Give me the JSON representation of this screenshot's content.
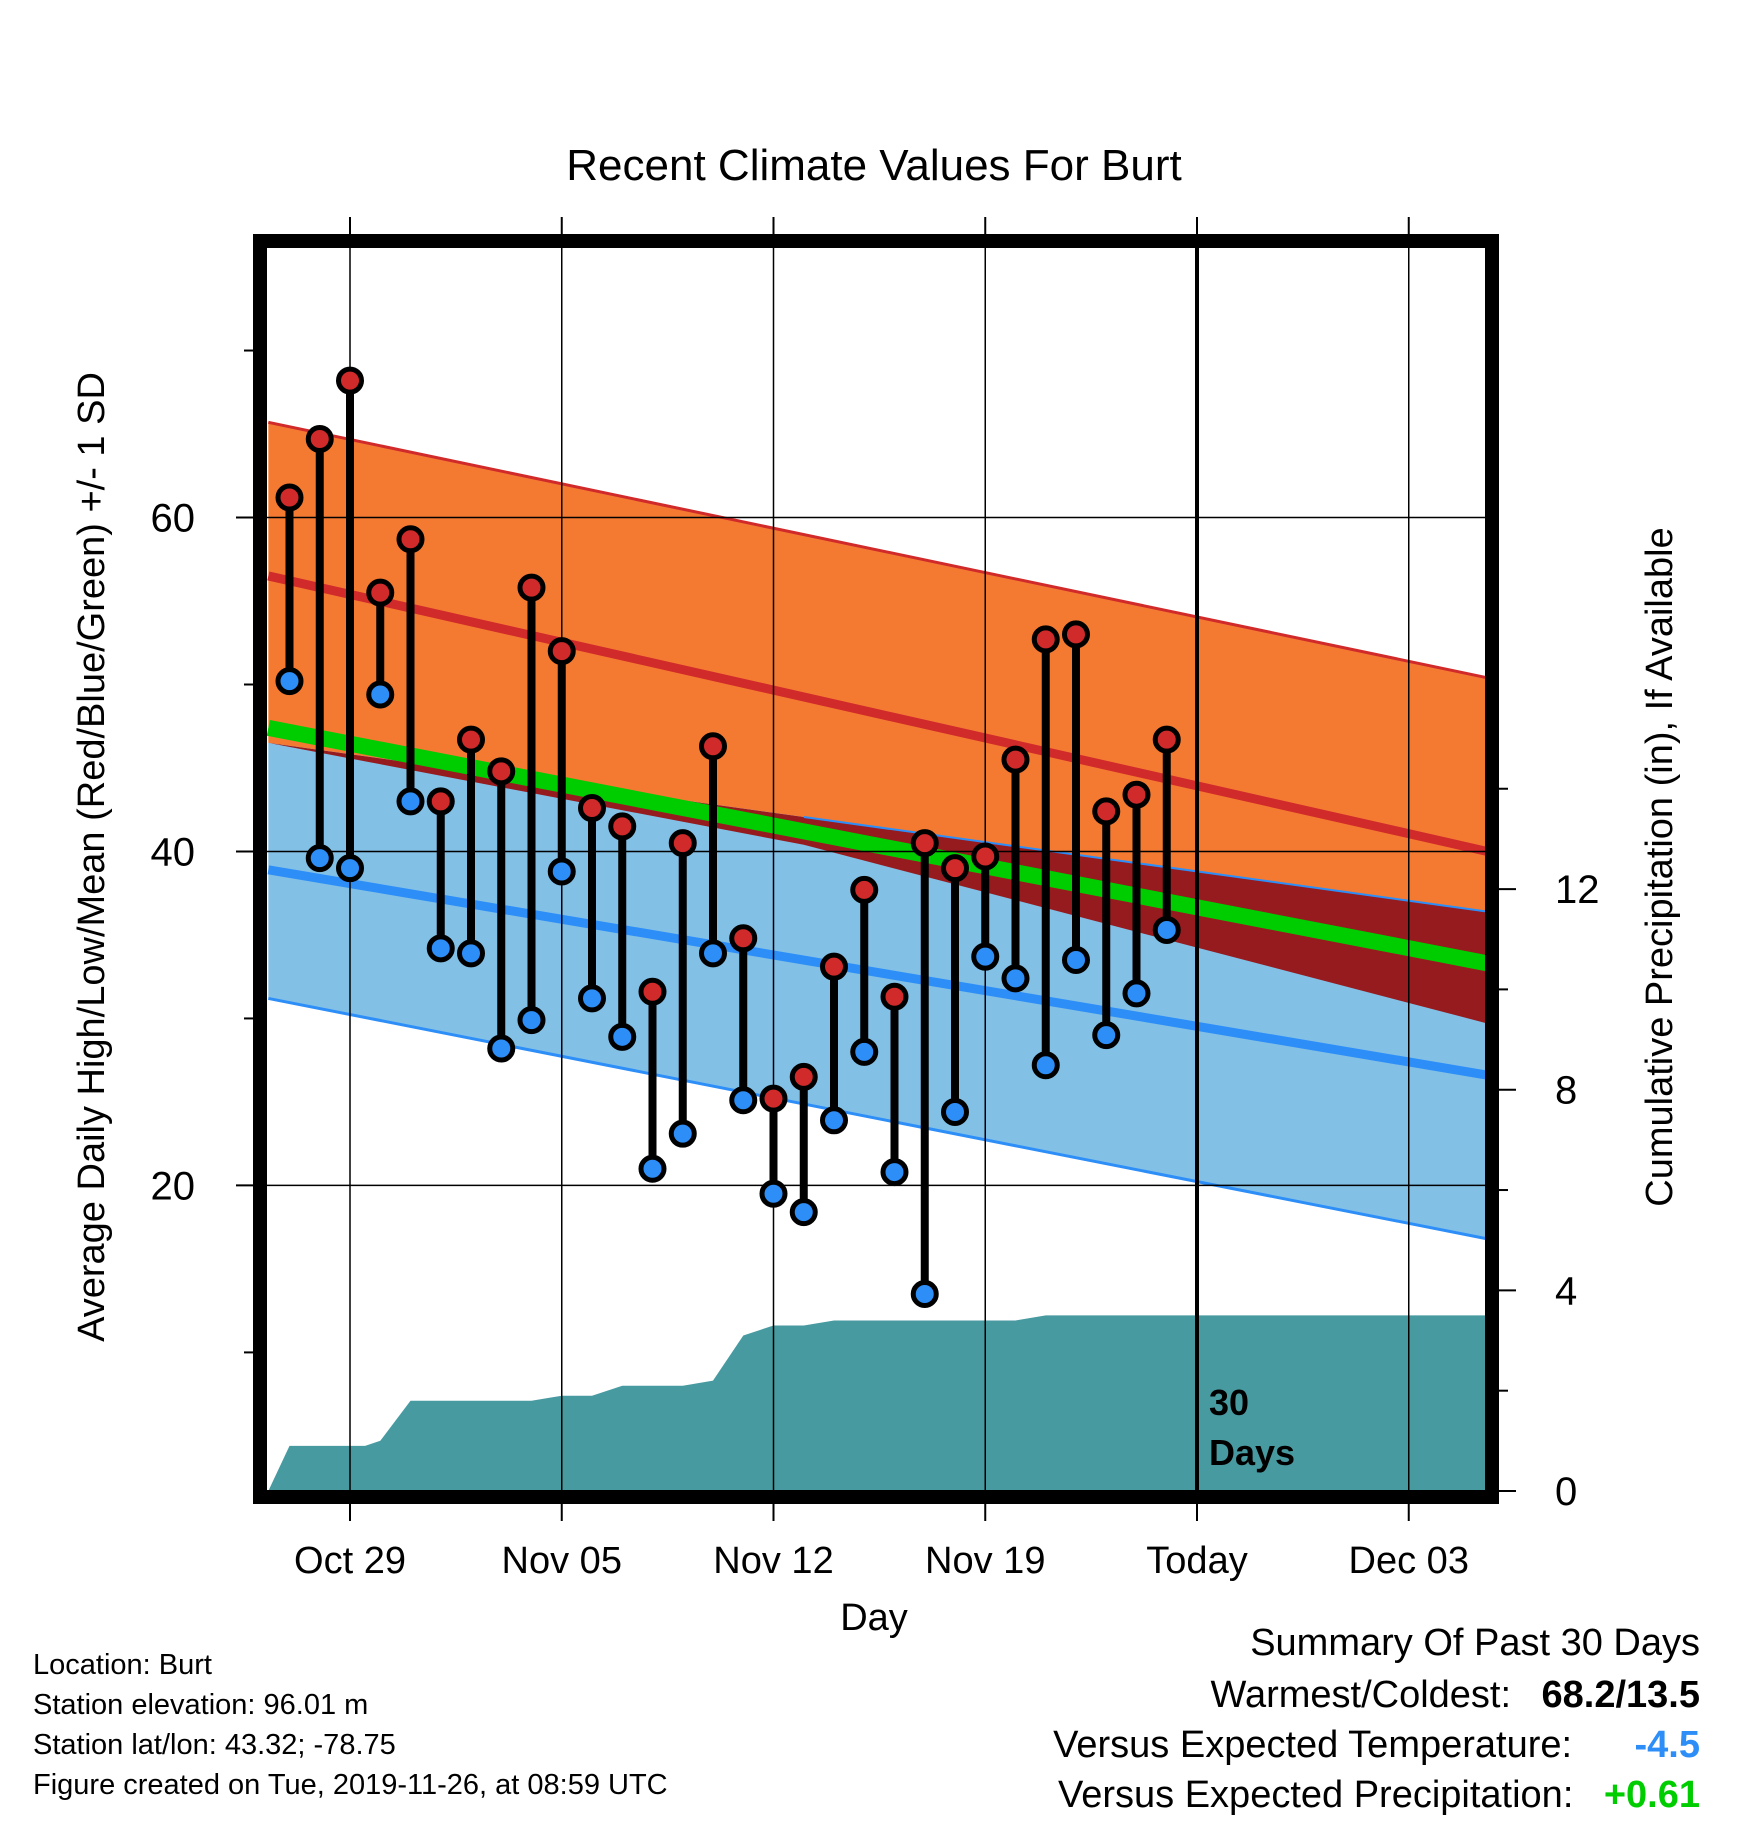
{
  "chart_data": {
    "type": "line",
    "title": "Recent Climate Values For Burt",
    "xlabel": "Day",
    "ylabel": "Average Daily High/Low/Mean (Red/Blue/Green) +/- 1 SD",
    "y2label": "Cumulative Precipitation (in), If Available",
    "x_ticks": [
      "Oct 29",
      "Nov 05",
      "Nov 12",
      "Nov 19",
      "Today",
      "Dec 03"
    ],
    "y_ticks": [
      20,
      40,
      60
    ],
    "y2_ticks": [
      0,
      4,
      8,
      12
    ],
    "ylim": [
      1.7,
      76.2
    ],
    "y2lim": [
      0,
      24.8
    ],
    "xlim_days": [
      -30.7,
      9.6
    ],
    "today_label": [
      "30",
      "Days"
    ],
    "grid": true,
    "colors": {
      "high_band": "#f47a32",
      "high_line": "#d12a2a",
      "low_band": "#82c0e6",
      "low_line": "#2d8ef8",
      "mean_line": "#00cd00",
      "warm_anomaly": "#951b1e",
      "precip": "#489aa1",
      "high_marker": "#d12a2a",
      "low_marker": "#2d8ef8"
    },
    "normals": {
      "high_mean": {
        "x": [
          -30.7,
          9.6
        ],
        "y": [
          56.5,
          40.0
        ]
      },
      "high_plus_sd": {
        "x": [
          -30.7,
          9.6
        ],
        "y": [
          65.7,
          50.4
        ]
      },
      "low_mean": {
        "x": [
          -30.7,
          9.6
        ],
        "y": [
          38.9,
          26.6
        ]
      },
      "low_minus_sd": {
        "x": [
          -30.7,
          9.6
        ],
        "y": [
          31.2,
          16.8
        ]
      },
      "mean": {
        "x": [
          -30.7,
          9.6
        ],
        "y": [
          47.4,
          33.3
        ]
      },
      "mean_lower_band_edge": {
        "x": [
          -30.7,
          -13.0,
          9.6
        ],
        "y": [
          46.5,
          40.4,
          29.7
        ]
      },
      "low_plus_sd": {
        "x": [
          -30.7,
          9.6
        ],
        "y": [
          46.5,
          36.4
        ]
      }
    },
    "daily": {
      "day_offset": [
        -30,
        -29,
        -28,
        -27,
        -26,
        -25,
        -24,
        -23,
        -22,
        -21,
        -20,
        -19,
        -18,
        -17,
        -16,
        -15,
        -14,
        -13,
        -12,
        -11,
        -10,
        -9,
        -8,
        -7,
        -6,
        -5,
        -4,
        -3,
        -2,
        -1
      ],
      "high": [
        61.2,
        64.7,
        68.2,
        55.5,
        58.7,
        43.0,
        46.7,
        44.8,
        55.8,
        52.0,
        42.6,
        41.5,
        31.6,
        40.5,
        46.3,
        34.8,
        25.2,
        26.5,
        33.1,
        37.7,
        31.3,
        40.5,
        39.0,
        39.7,
        45.5,
        52.7,
        53.0,
        42.4,
        43.4,
        46.7
      ],
      "low": [
        50.2,
        39.6,
        39.0,
        49.4,
        43.0,
        34.2,
        33.9,
        28.2,
        29.9,
        38.8,
        31.2,
        28.9,
        21.0,
        23.1,
        33.9,
        25.1,
        19.5,
        18.4,
        23.9,
        28.0,
        20.8,
        13.5,
        24.4,
        33.7,
        32.4,
        27.2,
        33.5,
        29.0,
        31.5,
        35.3
      ]
    },
    "precip_cumulative": {
      "day_offset": [
        -30.7,
        -30,
        -29,
        -28,
        -27.5,
        -27,
        -26,
        -25,
        -24,
        -23,
        -22,
        -21,
        -20,
        -19,
        -18,
        -17,
        -16,
        -15,
        -14,
        -13,
        -12,
        -11,
        -10,
        -9,
        -8,
        -7,
        -6,
        -5,
        -4,
        -3,
        -2,
        -1,
        0,
        9.6
      ],
      "value": [
        0.0,
        0.9,
        0.9,
        0.9,
        0.9,
        1.0,
        1.8,
        1.8,
        1.8,
        1.8,
        1.8,
        1.9,
        1.9,
        2.1,
        2.1,
        2.1,
        2.2,
        3.1,
        3.3,
        3.3,
        3.4,
        3.4,
        3.4,
        3.4,
        3.4,
        3.4,
        3.4,
        3.5,
        3.5,
        3.5,
        3.5,
        3.5,
        3.5,
        3.5
      ]
    }
  },
  "info": {
    "location": "Location: Burt",
    "elevation": "Station elevation: 96.01 m",
    "latlon": "Station lat/lon: 43.32; -78.75",
    "created": "Figure created on Tue, 2019-11-26, at 08:59 UTC"
  },
  "summary": {
    "title": "Summary Of Past 30 Days",
    "warmest_label": "Warmest/Coldest:",
    "warmest_value": "68.2/13.5",
    "temp_label": "Versus Expected Temperature:",
    "temp_value": "-4.5",
    "temp_color": "#2d8ef8",
    "precip_label": "Versus Expected Precipitation:",
    "precip_value": "+0.61",
    "precip_color": "#00cd00"
  }
}
